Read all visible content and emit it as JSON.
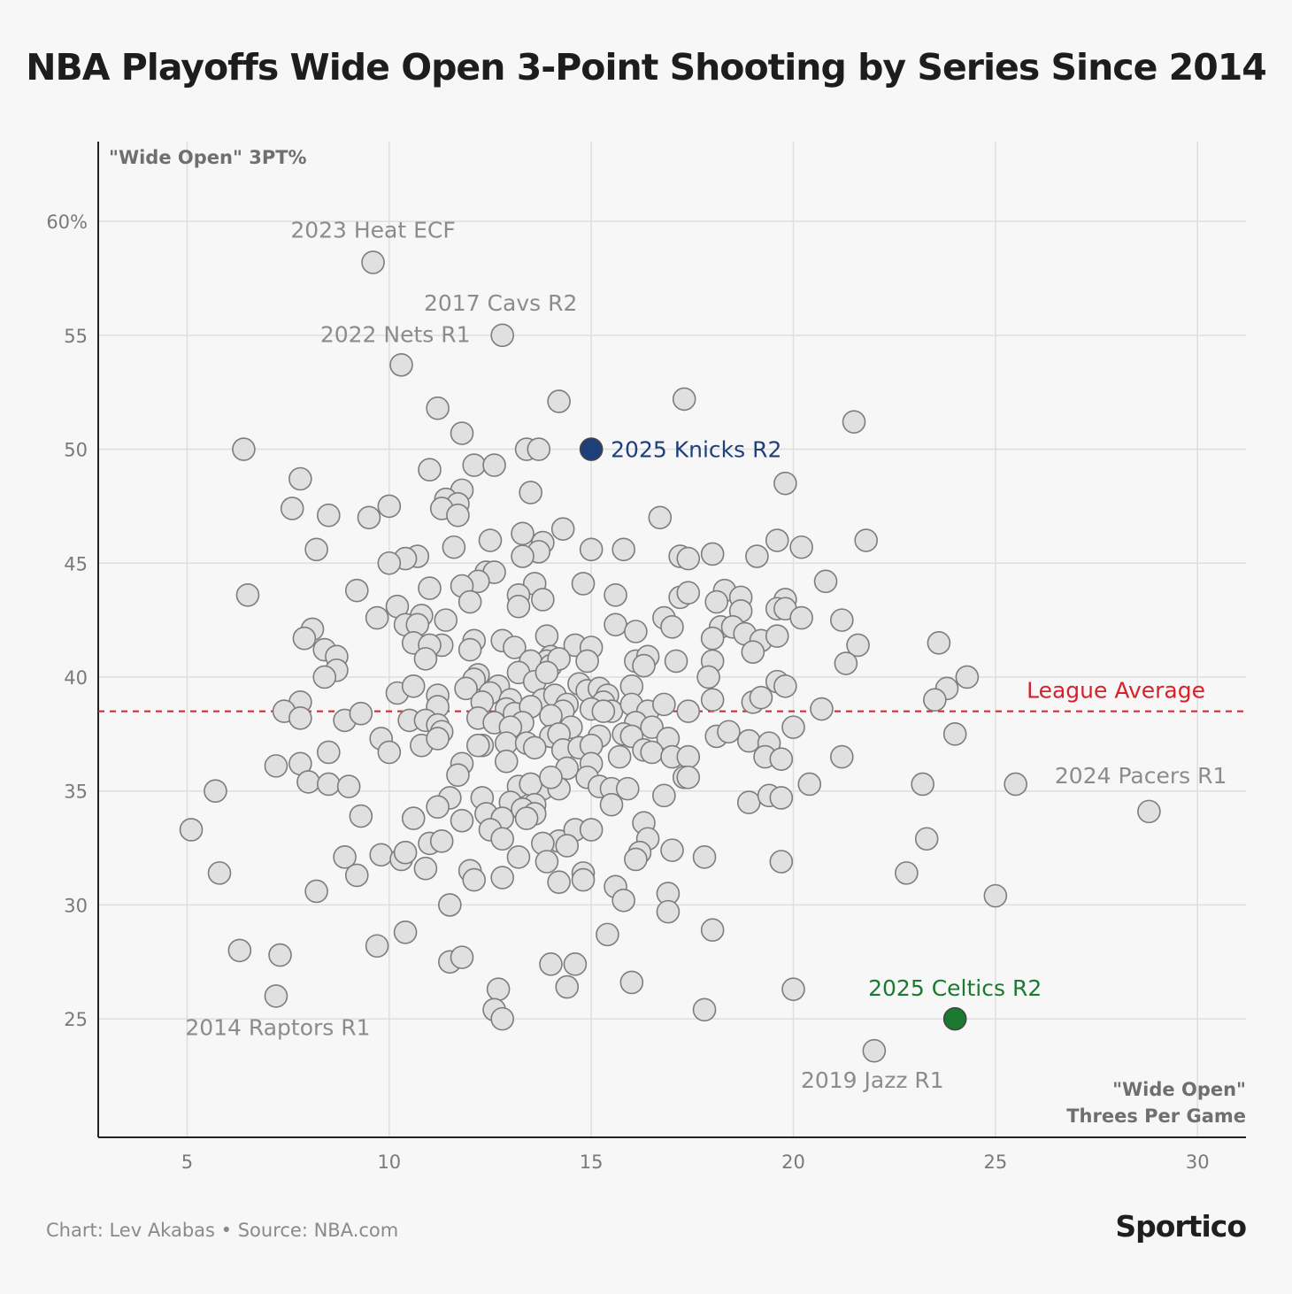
{
  "title": "NBA Playoffs Wide Open 3-Point Shooting by Series Since 2014",
  "footer": {
    "credit": "Chart: Lev Akabas • Source: NBA.com",
    "logo": "Sportico"
  },
  "colors": {
    "point_fill": "#e0e0e0",
    "point_stroke": "#7d7d7d",
    "knicks": "#1f3f7a",
    "celtics": "#1b7a2f",
    "league_average": "#d9202a",
    "label_gray": "#8c8c8c",
    "grid": "#dedede"
  },
  "chart_data": {
    "type": "scatter",
    "ylabel": "\"Wide Open\" 3PT%",
    "xlabel_lines": [
      "\"Wide Open\"",
      "Threes Per Game"
    ],
    "xlim": [
      2.8,
      31.2
    ],
    "ylim": [
      19.8,
      63.5
    ],
    "xticks": [
      5,
      10,
      15,
      20,
      25,
      30
    ],
    "yticks": [
      25,
      30,
      35,
      40,
      45,
      50,
      55,
      60
    ],
    "ytick_labels": [
      "25",
      "30",
      "35",
      "40",
      "45",
      "50",
      "55",
      "60%"
    ],
    "grid": true,
    "reference_line": {
      "label": "League Average",
      "y": 38.5
    },
    "highlights": [
      {
        "label": "2025 Knicks R2",
        "x": 15.0,
        "y": 50.0,
        "color": "knicks"
      },
      {
        "label": "2025 Celtics R2",
        "x": 24.0,
        "y": 25.0,
        "color": "celtics"
      }
    ],
    "annotations": [
      {
        "label": "2023 Heat ECF",
        "x": 9.6,
        "y": 58.2
      },
      {
        "label": "2017 Cavs R2",
        "x": 12.8,
        "y": 55.0
      },
      {
        "label": "2022 Nets R1",
        "x": 10.3,
        "y": 53.7
      },
      {
        "label": "2024 Pacers R1",
        "x": 28.8,
        "y": 34.1
      },
      {
        "label": "2014 Raptors R1",
        "x": 7.2,
        "y": 26.0
      },
      {
        "label": "2019 Jazz R1",
        "x": 22.0,
        "y": 23.6
      }
    ],
    "points": [
      [
        9.6,
        58.2
      ],
      [
        12.8,
        55.0
      ],
      [
        10.3,
        53.7
      ],
      [
        14.2,
        52.1
      ],
      [
        17.3,
        52.2
      ],
      [
        11.2,
        51.8
      ],
      [
        21.5,
        51.2
      ],
      [
        11.8,
        50.7
      ],
      [
        6.4,
        50.0
      ],
      [
        13.4,
        50.0
      ],
      [
        13.7,
        50.0
      ],
      [
        12.1,
        49.3
      ],
      [
        12.6,
        49.3
      ],
      [
        11.0,
        49.1
      ],
      [
        19.8,
        48.5
      ],
      [
        7.8,
        48.7
      ],
      [
        11.8,
        48.2
      ],
      [
        13.5,
        48.1
      ],
      [
        11.4,
        47.8
      ],
      [
        11.7,
        47.6
      ],
      [
        11.3,
        47.4
      ],
      [
        7.6,
        47.4
      ],
      [
        10.0,
        47.5
      ],
      [
        8.5,
        47.1
      ],
      [
        9.5,
        47.0
      ],
      [
        11.7,
        47.1
      ],
      [
        16.7,
        47.0
      ],
      [
        14.3,
        46.5
      ],
      [
        13.3,
        46.3
      ],
      [
        12.5,
        46.0
      ],
      [
        21.8,
        46.0
      ],
      [
        19.6,
        46.0
      ],
      [
        13.8,
        45.9
      ],
      [
        15.0,
        45.6
      ],
      [
        15.8,
        45.6
      ],
      [
        8.2,
        45.6
      ],
      [
        11.6,
        45.7
      ],
      [
        13.7,
        45.5
      ],
      [
        20.2,
        45.7
      ],
      [
        18.0,
        45.4
      ],
      [
        10.7,
        45.3
      ],
      [
        13.3,
        45.3
      ],
      [
        10.4,
        45.2
      ],
      [
        17.2,
        45.3
      ],
      [
        17.4,
        45.2
      ],
      [
        10.0,
        45.0
      ],
      [
        19.1,
        45.3
      ],
      [
        12.4,
        44.6
      ],
      [
        12.6,
        44.6
      ],
      [
        12.2,
        44.2
      ],
      [
        11.8,
        44.0
      ],
      [
        13.6,
        44.1
      ],
      [
        14.8,
        44.1
      ],
      [
        20.8,
        44.2
      ],
      [
        9.2,
        43.8
      ],
      [
        11.0,
        43.9
      ],
      [
        18.3,
        43.8
      ],
      [
        6.5,
        43.6
      ],
      [
        13.2,
        43.6
      ],
      [
        15.6,
        43.6
      ],
      [
        18.7,
        43.5
      ],
      [
        17.2,
        43.5
      ],
      [
        17.4,
        43.7
      ],
      [
        19.8,
        43.4
      ],
      [
        12.0,
        43.3
      ],
      [
        13.8,
        43.4
      ],
      [
        13.2,
        43.1
      ],
      [
        18.1,
        43.3
      ],
      [
        19.6,
        43.0
      ],
      [
        19.8,
        43.0
      ],
      [
        10.2,
        43.1
      ],
      [
        18.7,
        42.9
      ],
      [
        10.8,
        42.7
      ],
      [
        9.7,
        42.6
      ],
      [
        16.8,
        42.6
      ],
      [
        11.4,
        42.5
      ],
      [
        10.4,
        42.3
      ],
      [
        10.7,
        42.3
      ],
      [
        18.2,
        42.2
      ],
      [
        20.2,
        42.6
      ],
      [
        21.2,
        42.5
      ],
      [
        8.1,
        42.1
      ],
      [
        15.6,
        42.3
      ],
      [
        18.5,
        42.2
      ],
      [
        17.0,
        42.2
      ],
      [
        13.9,
        41.8
      ],
      [
        16.1,
        42.0
      ],
      [
        7.9,
        41.7
      ],
      [
        12.1,
        41.6
      ],
      [
        12.8,
        41.6
      ],
      [
        18.0,
        41.7
      ],
      [
        18.8,
        41.9
      ],
      [
        19.2,
        41.6
      ],
      [
        19.6,
        41.8
      ],
      [
        10.6,
        41.5
      ],
      [
        11.3,
        41.4
      ],
      [
        11.0,
        41.4
      ],
      [
        12.0,
        41.2
      ],
      [
        8.4,
        41.2
      ],
      [
        13.1,
        41.3
      ],
      [
        14.6,
        41.4
      ],
      [
        15.0,
        41.3
      ],
      [
        21.6,
        41.4
      ],
      [
        23.6,
        41.5
      ],
      [
        8.7,
        40.9
      ],
      [
        14.0,
        40.9
      ],
      [
        13.9,
        40.7
      ],
      [
        14.9,
        40.7
      ],
      [
        16.1,
        40.7
      ],
      [
        16.4,
        40.9
      ],
      [
        18.0,
        40.7
      ],
      [
        13.5,
        40.7
      ],
      [
        17.1,
        40.7
      ],
      [
        19.0,
        41.1
      ],
      [
        21.3,
        40.6
      ],
      [
        10.9,
        40.8
      ],
      [
        12.2,
        40.1
      ],
      [
        13.2,
        40.2
      ],
      [
        14.0,
        40.5
      ],
      [
        14.2,
        40.8
      ],
      [
        16.3,
        40.5
      ],
      [
        8.7,
        40.3
      ],
      [
        8.4,
        40.0
      ],
      [
        12.1,
        39.9
      ],
      [
        13.6,
        39.8
      ],
      [
        13.9,
        40.2
      ],
      [
        12.7,
        39.6
      ],
      [
        11.9,
        39.5
      ],
      [
        12.5,
        39.3
      ],
      [
        14.7,
        39.7
      ],
      [
        14.9,
        39.4
      ],
      [
        15.2,
        39.5
      ],
      [
        15.4,
        39.2
      ],
      [
        16.0,
        39.6
      ],
      [
        17.9,
        40.0
      ],
      [
        19.6,
        39.8
      ],
      [
        19.8,
        39.6
      ],
      [
        23.8,
        39.5
      ],
      [
        24.3,
        40.0
      ],
      [
        18.0,
        39.0
      ],
      [
        19.0,
        38.9
      ],
      [
        19.2,
        39.1
      ],
      [
        23.5,
        39.0
      ],
      [
        13.0,
        39.0
      ],
      [
        13.8,
        39.0
      ],
      [
        14.1,
        39.2
      ],
      [
        15.3,
        38.9
      ],
      [
        10.2,
        39.3
      ],
      [
        11.2,
        39.2
      ],
      [
        10.6,
        39.6
      ],
      [
        7.8,
        38.9
      ],
      [
        7.4,
        38.5
      ],
      [
        8.9,
        38.1
      ],
      [
        9.3,
        38.4
      ],
      [
        12.3,
        38.9
      ],
      [
        12.9,
        38.6
      ],
      [
        13.1,
        38.4
      ],
      [
        14.4,
        38.8
      ],
      [
        15.0,
        38.6
      ],
      [
        15.5,
        38.5
      ],
      [
        16.0,
        38.8
      ],
      [
        16.4,
        38.5
      ],
      [
        16.8,
        38.8
      ],
      [
        17.4,
        38.5
      ],
      [
        20.7,
        38.6
      ],
      [
        11.2,
        38.7
      ],
      [
        13.5,
        38.7
      ],
      [
        14.3,
        38.5
      ],
      [
        15.3,
        38.5
      ],
      [
        7.8,
        38.2
      ],
      [
        12.2,
        38.2
      ],
      [
        13.3,
        38.0
      ],
      [
        14.0,
        38.3
      ],
      [
        16.1,
        38.0
      ],
      [
        12.6,
        38.0
      ],
      [
        13.0,
        37.8
      ],
      [
        14.5,
        37.8
      ],
      [
        16.5,
        37.8
      ],
      [
        18.1,
        37.4
      ],
      [
        18.4,
        37.6
      ],
      [
        20.0,
        37.8
      ],
      [
        24.0,
        37.5
      ],
      [
        10.5,
        38.1
      ],
      [
        10.9,
        38.1
      ],
      [
        11.2,
        37.9
      ],
      [
        11.3,
        37.6
      ],
      [
        12.3,
        37.0
      ],
      [
        12.9,
        37.1
      ],
      [
        13.4,
        37.1
      ],
      [
        14.0,
        37.4
      ],
      [
        14.2,
        37.5
      ],
      [
        15.2,
        37.4
      ],
      [
        15.8,
        37.5
      ],
      [
        16.0,
        37.4
      ],
      [
        16.9,
        37.3
      ],
      [
        18.9,
        37.2
      ],
      [
        19.4,
        37.1
      ],
      [
        9.8,
        37.3
      ],
      [
        10.0,
        36.7
      ],
      [
        10.8,
        37.0
      ],
      [
        11.2,
        37.3
      ],
      [
        12.2,
        37.0
      ],
      [
        13.6,
        36.9
      ],
      [
        14.3,
        36.8
      ],
      [
        14.7,
        36.9
      ],
      [
        15.0,
        37.0
      ],
      [
        16.3,
        36.8
      ],
      [
        16.5,
        36.7
      ],
      [
        8.5,
        36.7
      ],
      [
        7.8,
        36.2
      ],
      [
        7.2,
        36.1
      ],
      [
        11.8,
        36.2
      ],
      [
        12.9,
        36.3
      ],
      [
        14.4,
        36.0
      ],
      [
        15.0,
        36.2
      ],
      [
        15.7,
        36.5
      ],
      [
        17.0,
        36.5
      ],
      [
        17.4,
        36.5
      ],
      [
        19.3,
        36.5
      ],
      [
        19.7,
        36.4
      ],
      [
        21.2,
        36.5
      ],
      [
        11.7,
        35.7
      ],
      [
        13.2,
        35.2
      ],
      [
        13.8,
        35.1
      ],
      [
        14.2,
        35.1
      ],
      [
        14.9,
        35.6
      ],
      [
        15.2,
        35.2
      ],
      [
        15.5,
        35.1
      ],
      [
        15.9,
        35.1
      ],
      [
        17.3,
        35.6
      ],
      [
        17.4,
        35.6
      ],
      [
        8.0,
        35.4
      ],
      [
        8.5,
        35.3
      ],
      [
        9.0,
        35.2
      ],
      [
        5.7,
        35.0
      ],
      [
        13.5,
        35.3
      ],
      [
        14.0,
        35.6
      ],
      [
        20.4,
        35.3
      ],
      [
        23.2,
        35.3
      ],
      [
        25.5,
        35.3
      ],
      [
        11.5,
        34.7
      ],
      [
        12.3,
        34.7
      ],
      [
        13.0,
        34.5
      ],
      [
        13.6,
        34.4
      ],
      [
        15.5,
        34.4
      ],
      [
        16.8,
        34.8
      ],
      [
        18.9,
        34.5
      ],
      [
        19.4,
        34.8
      ],
      [
        19.7,
        34.7
      ],
      [
        28.8,
        34.1
      ],
      [
        9.3,
        33.9
      ],
      [
        10.6,
        33.8
      ],
      [
        11.2,
        34.3
      ],
      [
        12.4,
        34.0
      ],
      [
        12.8,
        33.8
      ],
      [
        13.3,
        34.2
      ],
      [
        13.6,
        34.0
      ],
      [
        13.4,
        33.8
      ],
      [
        11.8,
        33.7
      ],
      [
        12.5,
        33.3
      ],
      [
        12.8,
        32.9
      ],
      [
        14.2,
        32.8
      ],
      [
        14.6,
        33.3
      ],
      [
        15.0,
        33.3
      ],
      [
        16.3,
        33.6
      ],
      [
        16.4,
        32.9
      ],
      [
        5.1,
        33.3
      ],
      [
        11.0,
        32.7
      ],
      [
        11.3,
        32.8
      ],
      [
        13.8,
        32.7
      ],
      [
        14.4,
        32.6
      ],
      [
        23.3,
        32.9
      ],
      [
        9.8,
        32.2
      ],
      [
        10.3,
        32.0
      ],
      [
        10.4,
        32.3
      ],
      [
        13.2,
        32.1
      ],
      [
        13.9,
        31.9
      ],
      [
        16.2,
        32.3
      ],
      [
        16.1,
        32.0
      ],
      [
        17.0,
        32.4
      ],
      [
        17.8,
        32.1
      ],
      [
        19.7,
        31.9
      ],
      [
        8.9,
        32.1
      ],
      [
        5.8,
        31.4
      ],
      [
        9.2,
        31.3
      ],
      [
        10.9,
        31.6
      ],
      [
        12.0,
        31.5
      ],
      [
        12.1,
        31.1
      ],
      [
        12.8,
        31.2
      ],
      [
        14.2,
        31.0
      ],
      [
        14.8,
        31.4
      ],
      [
        14.8,
        31.1
      ],
      [
        22.8,
        31.4
      ],
      [
        8.2,
        30.6
      ],
      [
        15.6,
        30.8
      ],
      [
        16.9,
        30.5
      ],
      [
        15.8,
        30.2
      ],
      [
        11.5,
        30.0
      ],
      [
        16.9,
        29.7
      ],
      [
        25.0,
        30.4
      ],
      [
        18.0,
        28.9
      ],
      [
        15.4,
        28.7
      ],
      [
        10.4,
        28.8
      ],
      [
        9.7,
        28.2
      ],
      [
        6.3,
        28.0
      ],
      [
        7.3,
        27.8
      ],
      [
        11.5,
        27.5
      ],
      [
        11.8,
        27.7
      ],
      [
        14.0,
        27.4
      ],
      [
        14.6,
        27.4
      ],
      [
        16.0,
        26.6
      ],
      [
        14.4,
        26.4
      ],
      [
        20.0,
        26.3
      ],
      [
        12.7,
        26.3
      ],
      [
        7.2,
        26.0
      ],
      [
        12.6,
        25.4
      ],
      [
        17.8,
        25.4
      ],
      [
        12.8,
        25.0
      ],
      [
        22.0,
        23.6
      ]
    ]
  }
}
